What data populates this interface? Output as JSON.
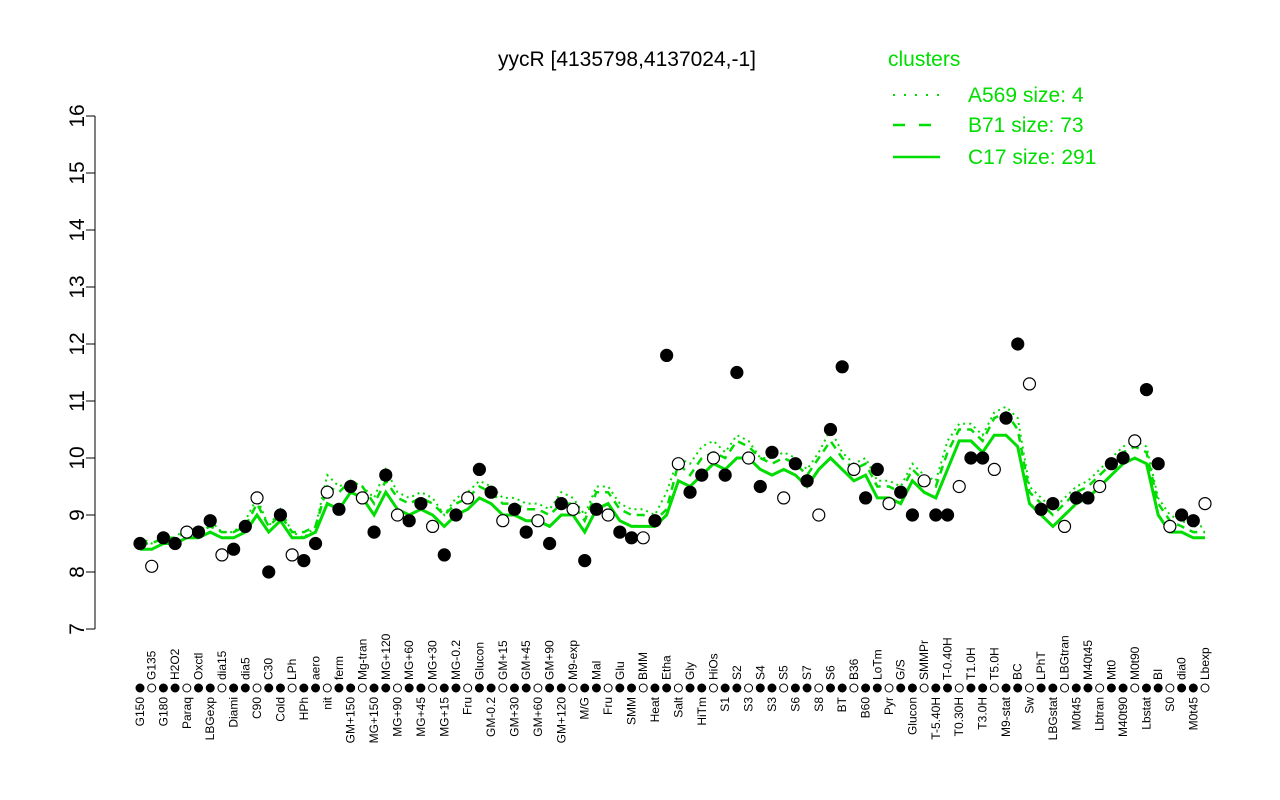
{
  "chart_data": {
    "type": "line",
    "title": "yycR [4135798,4137024,-1]",
    "xlabel": "",
    "ylabel": "",
    "ylim": [
      7,
      16
    ],
    "yticks": [
      7,
      8,
      9,
      10,
      11,
      12,
      13,
      14,
      15,
      16
    ],
    "grid": false,
    "legend": {
      "title": "clusters",
      "placement": "top-right",
      "entries": [
        {
          "label": "A569 size: 4",
          "style": "dotted"
        },
        {
          "label": "B71 size: 73",
          "style": "dashed"
        },
        {
          "label": "C17 size: 291",
          "style": "solid"
        }
      ]
    },
    "colors": {
      "line": "#00dd00",
      "points": "#000000",
      "legend_text": "#00dd00"
    },
    "categories": [
      "G150",
      "G135",
      "G180",
      "H2O2",
      "Paraq",
      "Oxctl",
      "LBGexp",
      "dia15",
      "Diami",
      "dia5",
      "C90",
      "C30",
      "Cold",
      "LPh",
      "HPh",
      "aero",
      "nit",
      "ferm",
      "GM+150",
      "Mg-tran",
      "MG+150",
      "MG+120",
      "MG+90",
      "MG+60",
      "MG+45",
      "MG+30",
      "MG+15",
      "MG-0.2",
      "Fru",
      "Glucon",
      "GM-0.2",
      "GM+15",
      "GM+30",
      "GM+45",
      "GM+60",
      "GM+90",
      "GM+120",
      "M9-exp",
      "M/G",
      "Mal",
      "Fru",
      "Glu",
      "SMM",
      "BMM",
      "Heat",
      "Etha",
      "Salt",
      "Gly",
      "HiTm",
      "HiOs",
      "S1",
      "S2",
      "S3",
      "S4",
      "S3",
      "S5",
      "S6",
      "S7",
      "S8",
      "S6",
      "BT",
      "B36",
      "B60",
      "LoTm",
      "Pyr",
      "G/S",
      "Glucon",
      "SMMPr",
      "T-5.40H",
      "T-0.40H",
      "T0.30H",
      "T1.0H",
      "T3.0H",
      "T5.0H",
      "M9-stat",
      "BC",
      "Sw",
      "LPhT",
      "LBGstat",
      "LBGtran",
      "M0t45",
      "M40t45",
      "Lbtran",
      "Mt0",
      "M40t90",
      "M0t90",
      "Lbstat",
      "BI",
      "S0",
      "dia0",
      "M0t45",
      "Lbexp"
    ],
    "points": [
      8.5,
      8.1,
      8.6,
      8.5,
      8.7,
      8.7,
      8.9,
      8.3,
      8.4,
      8.8,
      9.3,
      8.0,
      9.0,
      8.3,
      8.2,
      8.5,
      9.4,
      9.1,
      9.5,
      9.3,
      8.7,
      9.7,
      9.0,
      8.9,
      9.2,
      8.8,
      8.3,
      9.0,
      9.3,
      9.8,
      9.4,
      8.9,
      9.1,
      8.7,
      8.9,
      8.5,
      9.2,
      9.1,
      8.2,
      9.1,
      9.0,
      8.7,
      8.6,
      8.6,
      8.9,
      11.8,
      9.9,
      9.4,
      9.7,
      10.0,
      9.7,
      11.5,
      10.0,
      9.5,
      10.1,
      9.3,
      9.9,
      9.6,
      9.0,
      10.5,
      11.6,
      9.8,
      9.3,
      9.8,
      9.2,
      9.4,
      9.0,
      9.6,
      9.0,
      9.0,
      9.5,
      10.0,
      10.0,
      9.8,
      10.7,
      12.0,
      11.3,
      9.1,
      9.2,
      8.8,
      9.3,
      9.3,
      9.5,
      9.9,
      10.0,
      10.3,
      11.2,
      9.9,
      8.8,
      9.0,
      8.9,
      9.2
    ],
    "series": [
      {
        "name": "C17 size: 291",
        "style": "solid",
        "values": [
          8.4,
          8.4,
          8.5,
          8.5,
          8.6,
          8.6,
          8.7,
          8.6,
          8.6,
          8.7,
          9.0,
          8.7,
          8.9,
          8.6,
          8.6,
          8.7,
          9.2,
          9.1,
          9.4,
          9.3,
          9.0,
          9.4,
          9.1,
          9.0,
          9.1,
          9.0,
          8.8,
          9.0,
          9.1,
          9.3,
          9.2,
          9.0,
          9.0,
          8.9,
          8.9,
          8.8,
          9.0,
          9.0,
          8.7,
          9.1,
          9.2,
          8.9,
          8.8,
          8.8,
          8.8,
          9.0,
          9.6,
          9.5,
          9.7,
          9.9,
          9.8,
          10.0,
          10.0,
          9.8,
          9.7,
          9.8,
          9.7,
          9.5,
          9.8,
          10.0,
          9.8,
          9.6,
          9.7,
          9.3,
          9.3,
          9.2,
          9.6,
          9.4,
          9.3,
          9.8,
          10.3,
          10.3,
          10.1,
          10.4,
          10.4,
          10.2,
          9.2,
          9.0,
          8.8,
          9.0,
          9.2,
          9.3,
          9.5,
          9.7,
          9.9,
          10.0,
          9.9,
          9.0,
          8.7,
          8.7,
          8.6,
          8.6
        ]
      },
      {
        "name": "B71 size: 73",
        "style": "dashed",
        "values": [
          8.5,
          8.5,
          8.6,
          8.6,
          8.7,
          8.7,
          8.8,
          8.7,
          8.7,
          8.8,
          9.2,
          8.8,
          9.0,
          8.7,
          8.7,
          8.8,
          9.5,
          9.4,
          9.6,
          9.5,
          9.2,
          9.6,
          9.3,
          9.2,
          9.3,
          9.2,
          9.0,
          9.2,
          9.3,
          9.5,
          9.4,
          9.2,
          9.2,
          9.1,
          9.1,
          9.0,
          9.2,
          9.2,
          8.9,
          9.4,
          9.4,
          9.1,
          9.0,
          9.0,
          8.9,
          9.1,
          9.9,
          9.7,
          10.0,
          10.1,
          10.0,
          10.3,
          10.2,
          10.0,
          9.9,
          10.0,
          9.9,
          9.7,
          10.0,
          10.3,
          10.0,
          9.8,
          9.9,
          9.5,
          9.5,
          9.4,
          9.8,
          9.6,
          9.5,
          10.1,
          10.5,
          10.5,
          10.3,
          10.7,
          10.8,
          10.5,
          9.4,
          9.2,
          9.0,
          9.2,
          9.4,
          9.5,
          9.7,
          9.9,
          10.1,
          10.2,
          10.1,
          9.2,
          8.9,
          8.8,
          8.7,
          8.7
        ]
      },
      {
        "name": "A569 size: 4",
        "style": "dotted",
        "values": [
          8.6,
          8.5,
          8.6,
          8.6,
          8.8,
          8.7,
          8.9,
          8.7,
          8.7,
          8.9,
          9.3,
          8.8,
          9.1,
          8.7,
          8.6,
          8.8,
          9.7,
          9.5,
          9.6,
          9.5,
          9.3,
          9.8,
          9.4,
          9.3,
          9.4,
          9.3,
          9.0,
          9.3,
          9.4,
          9.6,
          9.5,
          9.3,
          9.3,
          9.2,
          9.2,
          9.1,
          9.4,
          9.3,
          9.0,
          9.5,
          9.5,
          9.2,
          9.1,
          9.1,
          9.0,
          9.4,
          10.0,
          9.9,
          10.2,
          10.3,
          10.1,
          10.4,
          10.3,
          10.0,
          10.0,
          10.1,
          10.0,
          9.8,
          10.1,
          10.5,
          10.1,
          9.9,
          10.0,
          9.6,
          9.6,
          9.5,
          9.9,
          9.7,
          9.6,
          10.3,
          10.6,
          10.6,
          10.4,
          10.8,
          10.9,
          10.7,
          9.5,
          9.3,
          9.1,
          9.3,
          9.5,
          9.6,
          9.8,
          10.0,
          10.2,
          10.3,
          10.2,
          9.3,
          9.0,
          8.9,
          8.8,
          8.8
        ]
      }
    ]
  }
}
